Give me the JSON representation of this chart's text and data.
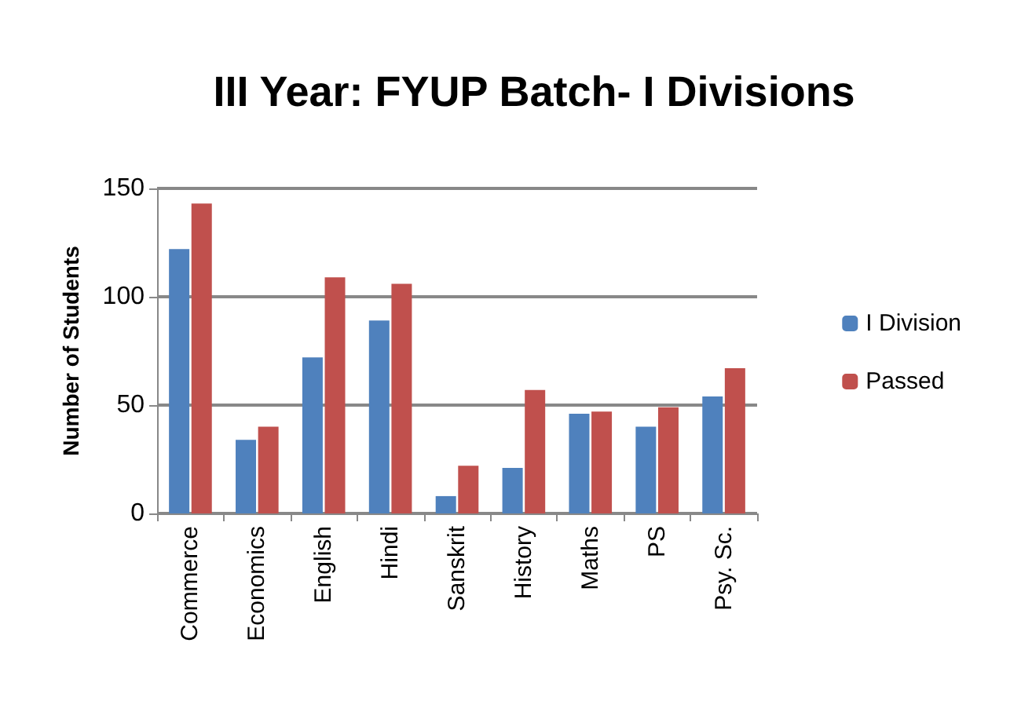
{
  "chart_data": {
    "type": "bar",
    "title": "III Year: FYUP Batch- I Divisions",
    "ylabel": "Number of Students",
    "categories": [
      "Commerce",
      "Economics",
      "English",
      "Hindi",
      "Sanskrit",
      "History",
      "Maths",
      "PS",
      "Psy. Sc."
    ],
    "series": [
      {
        "name": "I Division",
        "color": "#4f81bd",
        "values": [
          122,
          34,
          72,
          89,
          8,
          21,
          46,
          40,
          54
        ]
      },
      {
        "name": "Passed",
        "color": "#c0504d",
        "values": [
          143,
          40,
          109,
          106,
          22,
          57,
          47,
          49,
          67
        ]
      }
    ],
    "ylim": [
      0,
      150
    ],
    "yticks": [
      0,
      50,
      100,
      150
    ],
    "grid": "y",
    "legend": "right"
  }
}
